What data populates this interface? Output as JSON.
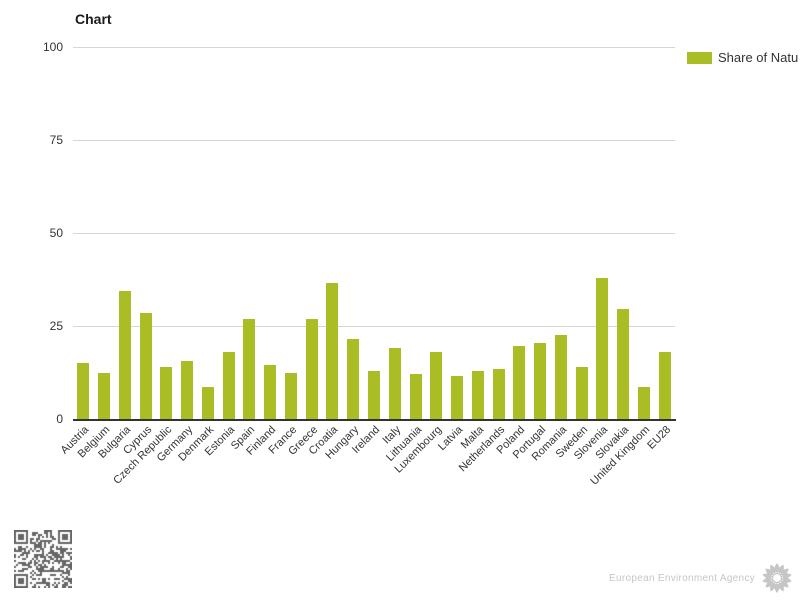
{
  "page": {
    "background": "#ffffff"
  },
  "chart": {
    "title": "Chart",
    "legend": {
      "label": "Share of Natu",
      "swatch_color": "#abbd24"
    },
    "footer": {
      "credit": "European Environment Agency",
      "qr_icon": "qr-code-icon",
      "logo_icon": "eea-sunflower-icon"
    }
  },
  "chart_data": {
    "type": "bar",
    "title": "Chart",
    "legend_entries": [
      "Share of Natu"
    ],
    "legend_position": "top-right",
    "grid": true,
    "xlabel": "",
    "ylabel": "",
    "ylim": [
      0,
      100
    ],
    "yticks": [
      0,
      25,
      50,
      75,
      100
    ],
    "bar_color": "#abbd24",
    "categories": [
      "Austria",
      "Belgium",
      "Bulgaria",
      "Cyprus",
      "Czech Republic",
      "Germany",
      "Denmark",
      "Estonia",
      "Spain",
      "Finland",
      "France",
      "Greece",
      "Croatia",
      "Hungary",
      "Ireland",
      "Italy",
      "Lithuania",
      "Luxembourg",
      "Latvia",
      "Malta",
      "Netherlands",
      "Poland",
      "Portugal",
      "Romania",
      "Sweden",
      "Slovenia",
      "Slovakia",
      "United Kingdom",
      "EU28"
    ],
    "values": [
      15,
      12.5,
      34.5,
      28.5,
      14,
      15.5,
      8.5,
      18,
      27,
      14.5,
      12.5,
      27,
      36.5,
      21.5,
      13,
      19,
      12,
      18,
      11.5,
      13,
      13.5,
      19.5,
      20.5,
      22.5,
      14,
      38,
      29.5,
      8.5,
      18
    ]
  },
  "colors": {
    "bar": "#abbd24",
    "grid": "#d6d6d6",
    "axis": "#333333",
    "tick_text": "#333333",
    "title_text": "#1a1a1a",
    "footer_text": "#c6c6c6",
    "qr": "#666666"
  }
}
